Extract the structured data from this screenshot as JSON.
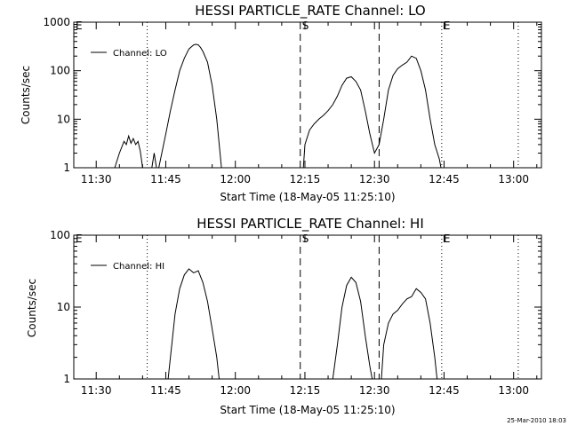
{
  "footer": {
    "timestamp": "25-Mar-2010 18:03"
  },
  "chart_data": [
    {
      "type": "line",
      "title": "HESSI PARTICLE_RATE Channel: LO",
      "xlabel": "Start Time (18-May-05 11:25:10)",
      "ylabel": "Counts/sec",
      "yscale": "log",
      "ylim": [
        1,
        1000
      ],
      "y_ticks": [
        1,
        10,
        100,
        1000
      ],
      "y_tick_labels": [
        "1",
        "10",
        "100",
        "1000"
      ],
      "xlim": [
        "11:25:10",
        "13:06:00"
      ],
      "x_ticks": [
        "11:30",
        "11:45",
        "12:00",
        "12:15",
        "12:30",
        "12:45",
        "13:00"
      ],
      "legend": {
        "entries": [
          "Channel: LO"
        ],
        "position": "top-left"
      },
      "markers": [
        {
          "label": "E",
          "time": "11:25:10",
          "style": "dotted"
        },
        {
          "label": "",
          "time": "11:41:00",
          "style": "dotted"
        },
        {
          "label": "S",
          "time": "12:14:00",
          "style": "dashed"
        },
        {
          "label": "",
          "time": "12:31:00",
          "style": "dashed"
        },
        {
          "label": "E",
          "time": "12:44:30",
          "style": "dotted"
        },
        {
          "label": "",
          "time": "13:01:00",
          "style": "dotted"
        }
      ],
      "series": [
        {
          "name": "Channel: LO",
          "segments": [
            {
              "x": [
                "11:34:00",
                "11:35:00",
                "11:36:00",
                "11:36:30",
                "11:37:00",
                "11:37:30",
                "11:38:00",
                "11:38:30",
                "11:39:00",
                "11:39:30",
                "11:40:00"
              ],
              "y": [
                1,
                2.0,
                3.5,
                3.0,
                4.5,
                3.2,
                4.0,
                3.0,
                3.5,
                2.2,
                1
              ]
            },
            {
              "x": [
                "11:42:00",
                "11:42:30",
                "11:43:00"
              ],
              "y": [
                1,
                2.0,
                1
              ]
            },
            {
              "x": [
                "11:43:30",
                "11:45:00",
                "11:46:00",
                "11:47:00",
                "11:48:00",
                "11:49:00",
                "11:50:00",
                "11:51:00",
                "11:51:30",
                "11:52:00",
                "11:52:30",
                "11:53:00",
                "11:54:00",
                "11:55:00",
                "11:56:00",
                "11:57:00"
              ],
              "y": [
                1,
                5,
                15,
                40,
                100,
                180,
                280,
                340,
                350,
                340,
                300,
                250,
                150,
                50,
                10,
                1
              ]
            },
            {
              "x": [
                "12:14:40",
                "12:15:00",
                "12:16:00",
                "12:17:00",
                "12:18:00",
                "12:19:00",
                "12:20:00",
                "12:21:00",
                "12:22:00",
                "12:23:00",
                "12:24:00",
                "12:25:00",
                "12:26:00",
                "12:27:00",
                "12:28:00",
                "12:29:00",
                "12:30:00",
                "12:31:00",
                "12:32:00",
                "12:33:00",
                "12:34:00",
                "12:35:00",
                "12:36:00",
                "12:37:00",
                "12:38:00",
                "12:39:00",
                "12:40:00",
                "12:41:00",
                "12:42:00",
                "12:43:00",
                "12:44:00",
                "12:44:20"
              ],
              "y": [
                1,
                3,
                6,
                8,
                10,
                12,
                15,
                20,
                30,
                50,
                70,
                75,
                60,
                40,
                15,
                5,
                2,
                3,
                10,
                40,
                80,
                110,
                130,
                150,
                200,
                180,
                100,
                40,
                10,
                3,
                1.5,
                1
              ]
            }
          ]
        }
      ]
    },
    {
      "type": "line",
      "title": "HESSI PARTICLE_RATE Channel: HI",
      "xlabel": "Start Time (18-May-05 11:25:10)",
      "ylabel": "Counts/sec",
      "yscale": "log",
      "ylim": [
        1,
        100
      ],
      "y_ticks": [
        1,
        10,
        100
      ],
      "y_tick_labels": [
        "1",
        "10",
        "100"
      ],
      "xlim": [
        "11:25:10",
        "13:06:00"
      ],
      "x_ticks": [
        "11:30",
        "11:45",
        "12:00",
        "12:15",
        "12:30",
        "12:45",
        "13:00"
      ],
      "legend": {
        "entries": [
          "Channel: HI"
        ],
        "position": "top-left"
      },
      "markers": [
        {
          "label": "E",
          "time": "11:25:10",
          "style": "dotted"
        },
        {
          "label": "",
          "time": "11:41:00",
          "style": "dotted"
        },
        {
          "label": "S",
          "time": "12:14:00",
          "style": "dashed"
        },
        {
          "label": "",
          "time": "12:31:00",
          "style": "dashed"
        },
        {
          "label": "E",
          "time": "12:44:30",
          "style": "dotted"
        },
        {
          "label": "",
          "time": "13:01:00",
          "style": "dotted"
        }
      ],
      "series": [
        {
          "name": "Channel: HI",
          "segments": [
            {
              "x": [
                "11:45:30",
                "11:46:00",
                "11:47:00",
                "11:48:00",
                "11:49:00",
                "11:50:00",
                "11:51:00",
                "11:52:00",
                "11:53:00",
                "11:54:00",
                "11:55:00",
                "11:56:00",
                "11:56:30"
              ],
              "y": [
                1,
                2,
                8,
                18,
                28,
                34,
                30,
                32,
                22,
                12,
                5,
                2,
                1
              ]
            },
            {
              "x": [
                "12:21:00",
                "12:22:00",
                "12:23:00",
                "12:24:00",
                "12:25:00",
                "12:26:00",
                "12:27:00",
                "12:28:00",
                "12:29:00",
                "12:29:30"
              ],
              "y": [
                1,
                3,
                10,
                20,
                26,
                22,
                12,
                4,
                1.5,
                1
              ]
            },
            {
              "x": [
                "12:31:30",
                "12:32:00",
                "12:33:00",
                "12:34:00",
                "12:35:00",
                "12:36:00",
                "12:37:00",
                "12:38:00",
                "12:39:00",
                "12:40:00",
                "12:41:00",
                "12:42:00",
                "12:43:00",
                "12:43:30"
              ],
              "y": [
                1,
                3,
                6,
                8,
                9,
                11,
                13,
                14,
                18,
                16,
                13,
                6,
                2,
                1
              ]
            }
          ]
        }
      ]
    }
  ]
}
